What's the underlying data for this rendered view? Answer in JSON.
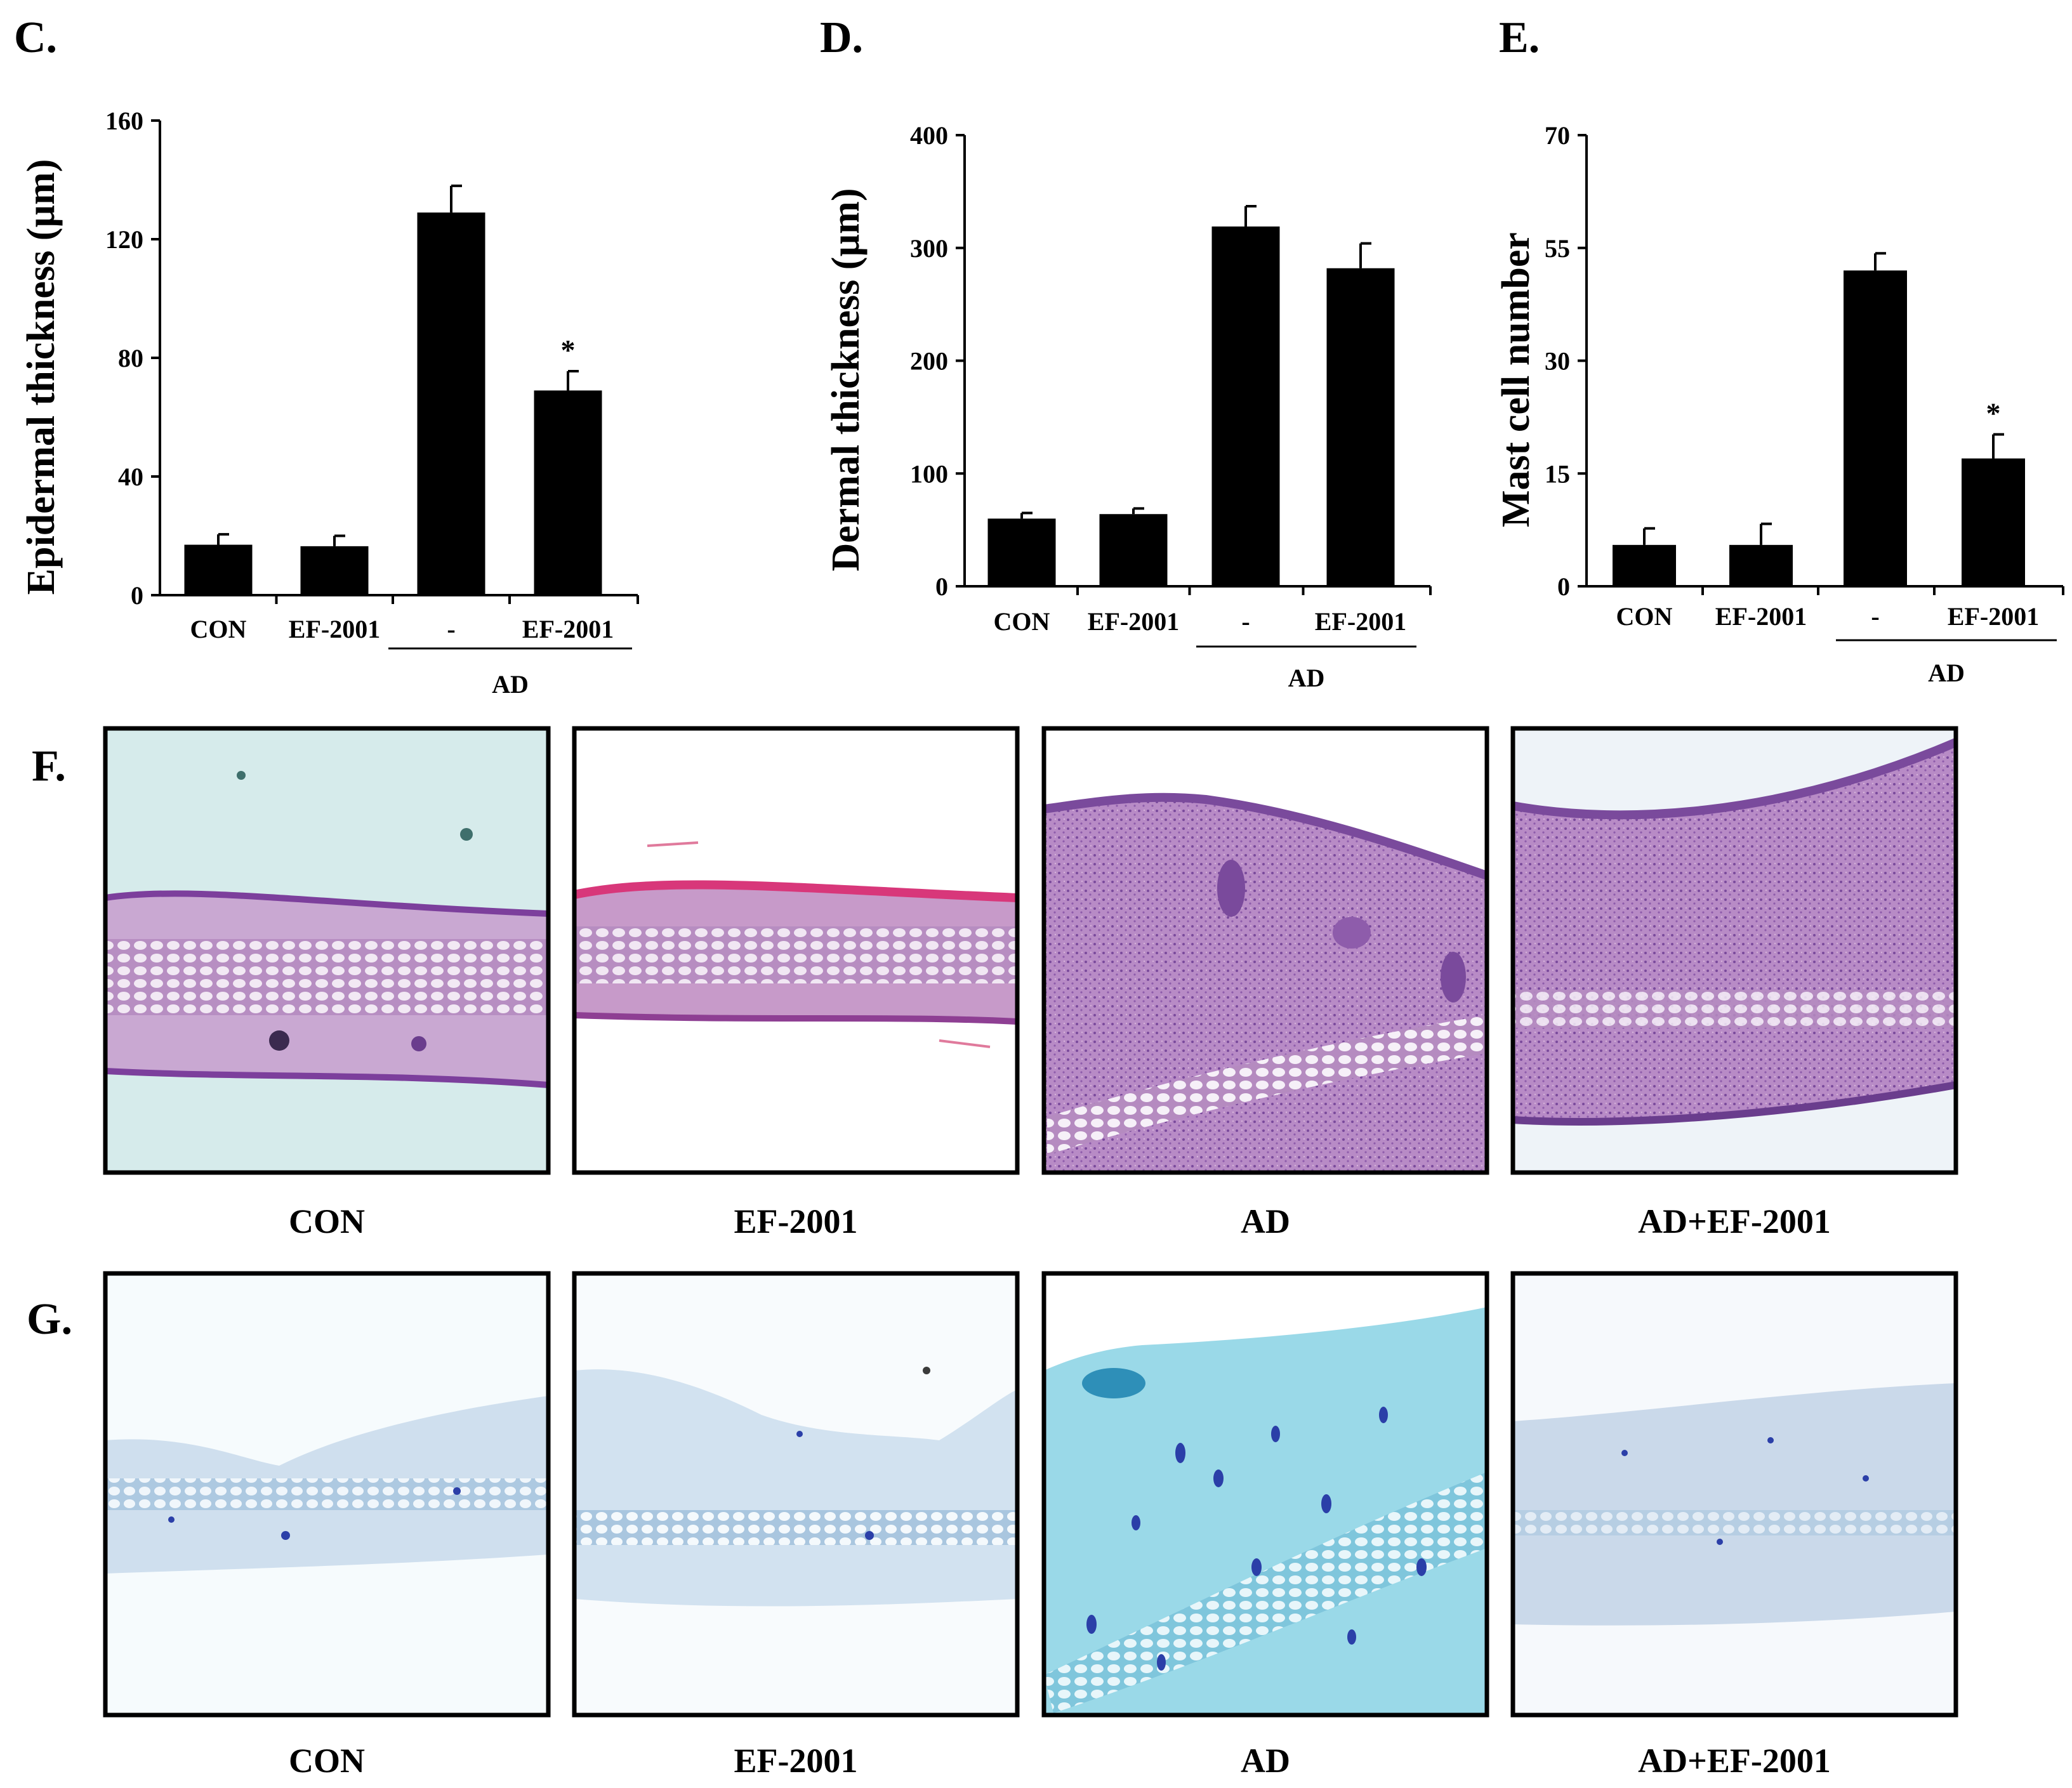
{
  "chart_data": [
    {
      "panel_letter": "C.",
      "type": "bar",
      "ylabel": "Epidermal thickness (µm)",
      "ylim": [
        0,
        160
      ],
      "yticks": [
        0,
        40,
        80,
        120,
        160
      ],
      "tick_labels": [
        "0",
        "40",
        "80",
        "120",
        "160"
      ],
      "categories": [
        "CON",
        "EF-2001",
        "-",
        "EF-2001"
      ],
      "values": [
        17,
        16.5,
        129,
        69
      ],
      "errors": [
        3.5,
        3.5,
        9,
        6.5
      ],
      "significance": [
        "",
        "",
        "",
        "*"
      ],
      "group_label": "AD"
    },
    {
      "panel_letter": "D.",
      "type": "bar",
      "ylabel": "Dermal thickness (µm)",
      "ylim": [
        0,
        400
      ],
      "yticks": [
        0,
        100,
        200,
        300,
        400
      ],
      "tick_labels": [
        "0",
        "100",
        "200",
        "300",
        "400"
      ],
      "categories": [
        "CON",
        "EF-2001",
        "-",
        "EF-2001"
      ],
      "values": [
        60,
        64,
        319,
        282
      ],
      "errors": [
        5,
        5,
        18,
        22
      ],
      "significance": [
        "",
        "",
        "",
        ""
      ],
      "group_label": "AD"
    },
    {
      "panel_letter": "E.",
      "type": "bar",
      "ylabel": "Mast cell number",
      "ylim": [
        0,
        70
      ],
      "yticks": [
        0,
        15,
        30,
        55,
        70
      ],
      "tick_labels": [
        "0",
        "15",
        "30",
        "55",
        "70"
      ],
      "categories": [
        "CON",
        "EF-2001",
        "-",
        "EF-2001"
      ],
      "values": [
        5.5,
        5.5,
        50,
        17
      ],
      "errors": [
        2.2,
        2.8,
        3.8,
        3.2
      ],
      "significance": [
        "",
        "",
        "",
        "*"
      ],
      "group_label": "AD"
    }
  ],
  "histology": {
    "F": {
      "letter": "F.",
      "stain_colors": {
        "background": "#d8ecec",
        "tissue": "#c79ac9",
        "nuclei": "#6a3d8d",
        "surface": "#d8377a"
      },
      "labels": [
        "CON",
        "EF-2001",
        "AD",
        "AD+EF-2001"
      ]
    },
    "G": {
      "letter": "G.",
      "stain_colors": {
        "background": "#f6fbfd",
        "tissue": "#c8dcec",
        "cells": "#2b3fa8",
        "ad_tissue": "#8ed6e6"
      },
      "labels": [
        "CON",
        "EF-2001",
        "AD",
        "AD+EF-2001"
      ]
    }
  }
}
